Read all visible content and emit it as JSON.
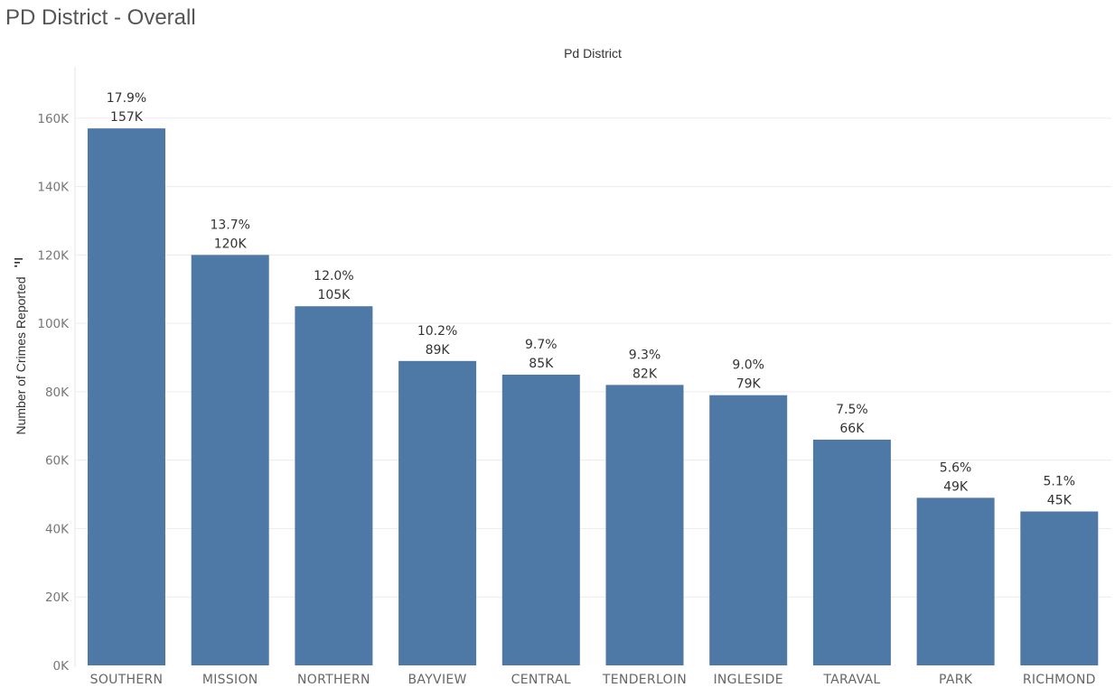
{
  "page": {
    "title": "PD District - Overall"
  },
  "chart_data": {
    "type": "bar",
    "title": "Pd District",
    "xlabel": "",
    "ylabel": "Number of Crimes Reported",
    "ylim": [
      0,
      175000
    ],
    "yticks": [
      0,
      20000,
      40000,
      60000,
      80000,
      100000,
      120000,
      140000,
      160000
    ],
    "ytick_labels": [
      "0K",
      "20K",
      "40K",
      "60K",
      "80K",
      "100K",
      "120K",
      "140K",
      "160K"
    ],
    "categories": [
      "SOUTHERN",
      "MISSION",
      "NORTHERN",
      "BAYVIEW",
      "CENTRAL",
      "TENDERLOIN",
      "INGLESIDE",
      "TARAVAL",
      "PARK",
      "RICHMOND"
    ],
    "values": [
      157000,
      120000,
      105000,
      89000,
      85000,
      82000,
      79000,
      66000,
      49000,
      45000
    ],
    "value_labels": [
      "157K",
      "120K",
      "105K",
      "89K",
      "85K",
      "82K",
      "79K",
      "66K",
      "49K",
      "45K"
    ],
    "percent_labels": [
      "17.9%",
      "13.7%",
      "12.0%",
      "10.2%",
      "9.7%",
      "9.3%",
      "9.0%",
      "7.5%",
      "5.6%",
      "5.1%"
    ],
    "bar_color": "#4e79a7",
    "grid": true
  }
}
